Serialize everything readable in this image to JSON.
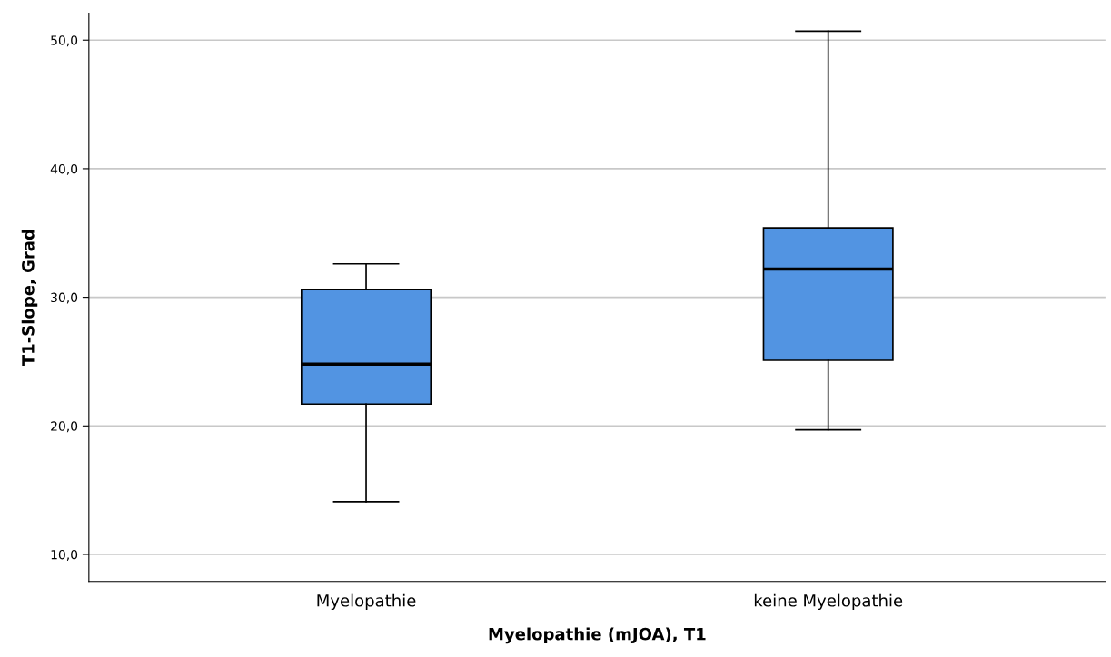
{
  "chart_data": {
    "type": "box",
    "xlabel": "Myelopathie (mJOA), T1",
    "ylabel": "T1-Slope, Grad",
    "categories": [
      "Myelopathie",
      "keine Myelopathie"
    ],
    "boxes": [
      {
        "low": 14.1,
        "q1": 21.7,
        "median": 24.8,
        "q3": 30.6,
        "high": 32.6
      },
      {
        "low": 19.7,
        "q1": 25.1,
        "median": 32.2,
        "q3": 35.4,
        "high": 50.7
      }
    ],
    "color": "#5294e2",
    "ylim": [
      7.9,
      52.1
    ],
    "yticks": [
      {
        "value": 10,
        "label": "10,0"
      },
      {
        "value": 20,
        "label": "20,0"
      },
      {
        "value": 30,
        "label": "30,0"
      },
      {
        "value": 40,
        "label": "40,0"
      },
      {
        "value": 50,
        "label": "50,0"
      }
    ],
    "grid": "y"
  }
}
